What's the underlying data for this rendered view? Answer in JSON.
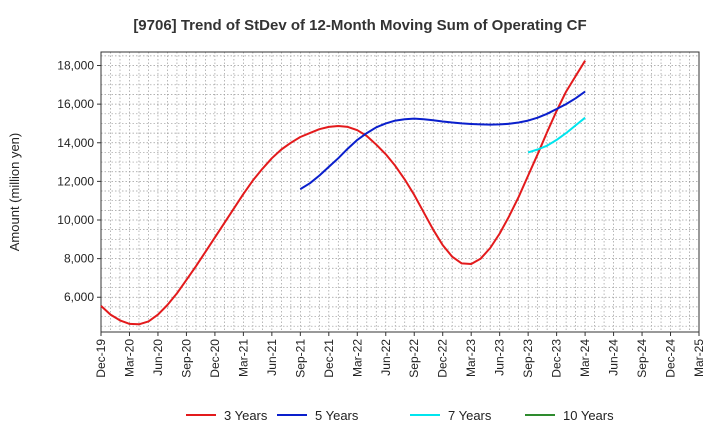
{
  "chart_data": {
    "type": "line",
    "title": "[9706]  Trend of StDev of 12-Month Moving Sum of Operating CF",
    "ylabel": "Amount (million yen)",
    "xlabel": "",
    "ylim": [
      4200,
      18700
    ],
    "y_ticks": [
      6000,
      8000,
      10000,
      12000,
      14000,
      16000,
      18000
    ],
    "y_tick_labels": [
      "6,000",
      "8,000",
      "10,000",
      "12,000",
      "14,000",
      "16,000",
      "18,000"
    ],
    "x_ticks": [
      "Dec-19",
      "Mar-20",
      "Jun-20",
      "Sep-20",
      "Dec-20",
      "Mar-21",
      "Jun-21",
      "Sep-21",
      "Dec-21",
      "Mar-22",
      "Jun-22",
      "Sep-22",
      "Dec-22",
      "Mar-23",
      "Jun-23",
      "Sep-23",
      "Dec-23",
      "Mar-24",
      "Jun-24",
      "Sep-24",
      "Dec-24",
      "Mar-25"
    ],
    "grid": true,
    "legend_position": "bottom",
    "series": [
      {
        "name": "3 Years",
        "color": "#e31a1c",
        "x": [
          "Dec-19",
          "Jan-20",
          "Feb-20",
          "Mar-20",
          "Apr-20",
          "May-20",
          "Jun-20",
          "Jul-20",
          "Aug-20",
          "Sep-20",
          "Oct-20",
          "Nov-20",
          "Dec-20",
          "Jan-21",
          "Feb-21",
          "Mar-21",
          "Apr-21",
          "May-21",
          "Jun-21",
          "Jul-21",
          "Aug-21",
          "Sep-21",
          "Oct-21",
          "Nov-21",
          "Dec-21",
          "Jan-22",
          "Feb-22",
          "Mar-22",
          "Apr-22",
          "May-22",
          "Jun-22",
          "Jul-22",
          "Aug-22",
          "Sep-22",
          "Oct-22",
          "Nov-22",
          "Dec-22",
          "Jan-23",
          "Feb-23",
          "Mar-23",
          "Apr-23",
          "May-23",
          "Jun-23",
          "Jul-23",
          "Aug-23",
          "Sep-23",
          "Oct-23",
          "Nov-23",
          "Dec-23",
          "Jan-24",
          "Feb-24",
          "Mar-24"
        ],
        "values": [
          5550,
          5100,
          4800,
          4620,
          4600,
          4750,
          5100,
          5600,
          6200,
          6900,
          7600,
          8350,
          9100,
          9850,
          10600,
          11350,
          12050,
          12650,
          13200,
          13650,
          14000,
          14300,
          14500,
          14700,
          14820,
          14870,
          14820,
          14650,
          14350,
          13900,
          13400,
          12800,
          12100,
          11300,
          10400,
          9500,
          8700,
          8100,
          7750,
          7720,
          8000,
          8550,
          9300,
          10200,
          11200,
          12300,
          13400,
          14550,
          15650,
          16650,
          17450,
          18250
        ]
      },
      {
        "name": "5 Years",
        "color": "#0a1fcc",
        "x": [
          "Sep-21",
          "Oct-21",
          "Nov-21",
          "Dec-21",
          "Jan-22",
          "Feb-22",
          "Mar-22",
          "Apr-22",
          "May-22",
          "Jun-22",
          "Jul-22",
          "Aug-22",
          "Sep-22",
          "Oct-22",
          "Nov-22",
          "Dec-22",
          "Jan-23",
          "Feb-23",
          "Mar-23",
          "Apr-23",
          "May-23",
          "Jun-23",
          "Jul-23",
          "Aug-23",
          "Sep-23",
          "Oct-23",
          "Nov-23",
          "Dec-23",
          "Jan-24",
          "Feb-24",
          "Mar-24"
        ],
        "values": [
          11600,
          11900,
          12300,
          12750,
          13200,
          13700,
          14150,
          14500,
          14800,
          15000,
          15150,
          15220,
          15250,
          15220,
          15170,
          15100,
          15050,
          15000,
          14970,
          14950,
          14940,
          14950,
          14980,
          15050,
          15150,
          15300,
          15500,
          15750,
          16000,
          16300,
          16650
        ]
      },
      {
        "name": "7 Years",
        "color": "#00e5ee",
        "x": [
          "Sep-23",
          "Oct-23",
          "Nov-23",
          "Dec-23",
          "Jan-24",
          "Feb-24",
          "Mar-24"
        ],
        "values": [
          13500,
          13650,
          13850,
          14150,
          14500,
          14900,
          15300
        ]
      },
      {
        "name": "10 Years",
        "color": "#2e8b2e",
        "x": [],
        "values": []
      }
    ]
  }
}
